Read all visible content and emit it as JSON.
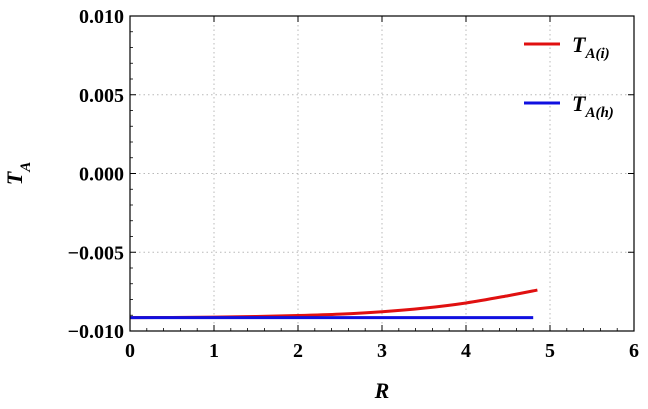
{
  "chart_data": {
    "type": "line",
    "xlabel": "R",
    "ylabel": {
      "base": "T",
      "sub": "A"
    },
    "xlim": [
      0,
      6
    ],
    "ylim": [
      -0.01,
      0.01
    ],
    "x_ticks": [
      "0",
      "1",
      "2",
      "3",
      "4",
      "5",
      "6"
    ],
    "y_ticks": [
      "0.010",
      "0.005",
      "0.000",
      "−0.005",
      "−0.010"
    ],
    "x_tick_values": [
      0,
      1,
      2,
      3,
      4,
      5,
      6
    ],
    "y_tick_values": [
      0.01,
      0.005,
      0,
      -0.005,
      -0.01
    ],
    "grid": true,
    "grid_style": "dotted",
    "legend_position": "top-right",
    "series": [
      {
        "name": "T_A(i)",
        "label_base": "T",
        "label_sub": "A(i)",
        "color": "#e01010",
        "x": [
          0,
          0.5,
          1,
          1.5,
          2,
          2.5,
          3,
          3.5,
          4,
          4.5,
          4.85
        ],
        "y": [
          -0.00915,
          -0.00914,
          -0.00912,
          -0.00908,
          -0.00902,
          -0.00893,
          -0.00878,
          -0.00855,
          -0.00822,
          -0.00776,
          -0.0074
        ]
      },
      {
        "name": "T_A(h)",
        "label_base": "T",
        "label_sub": "A(h)",
        "color": "#1010e0",
        "x": [
          0,
          4.8
        ],
        "y": [
          -0.00915,
          -0.00915
        ]
      }
    ]
  }
}
